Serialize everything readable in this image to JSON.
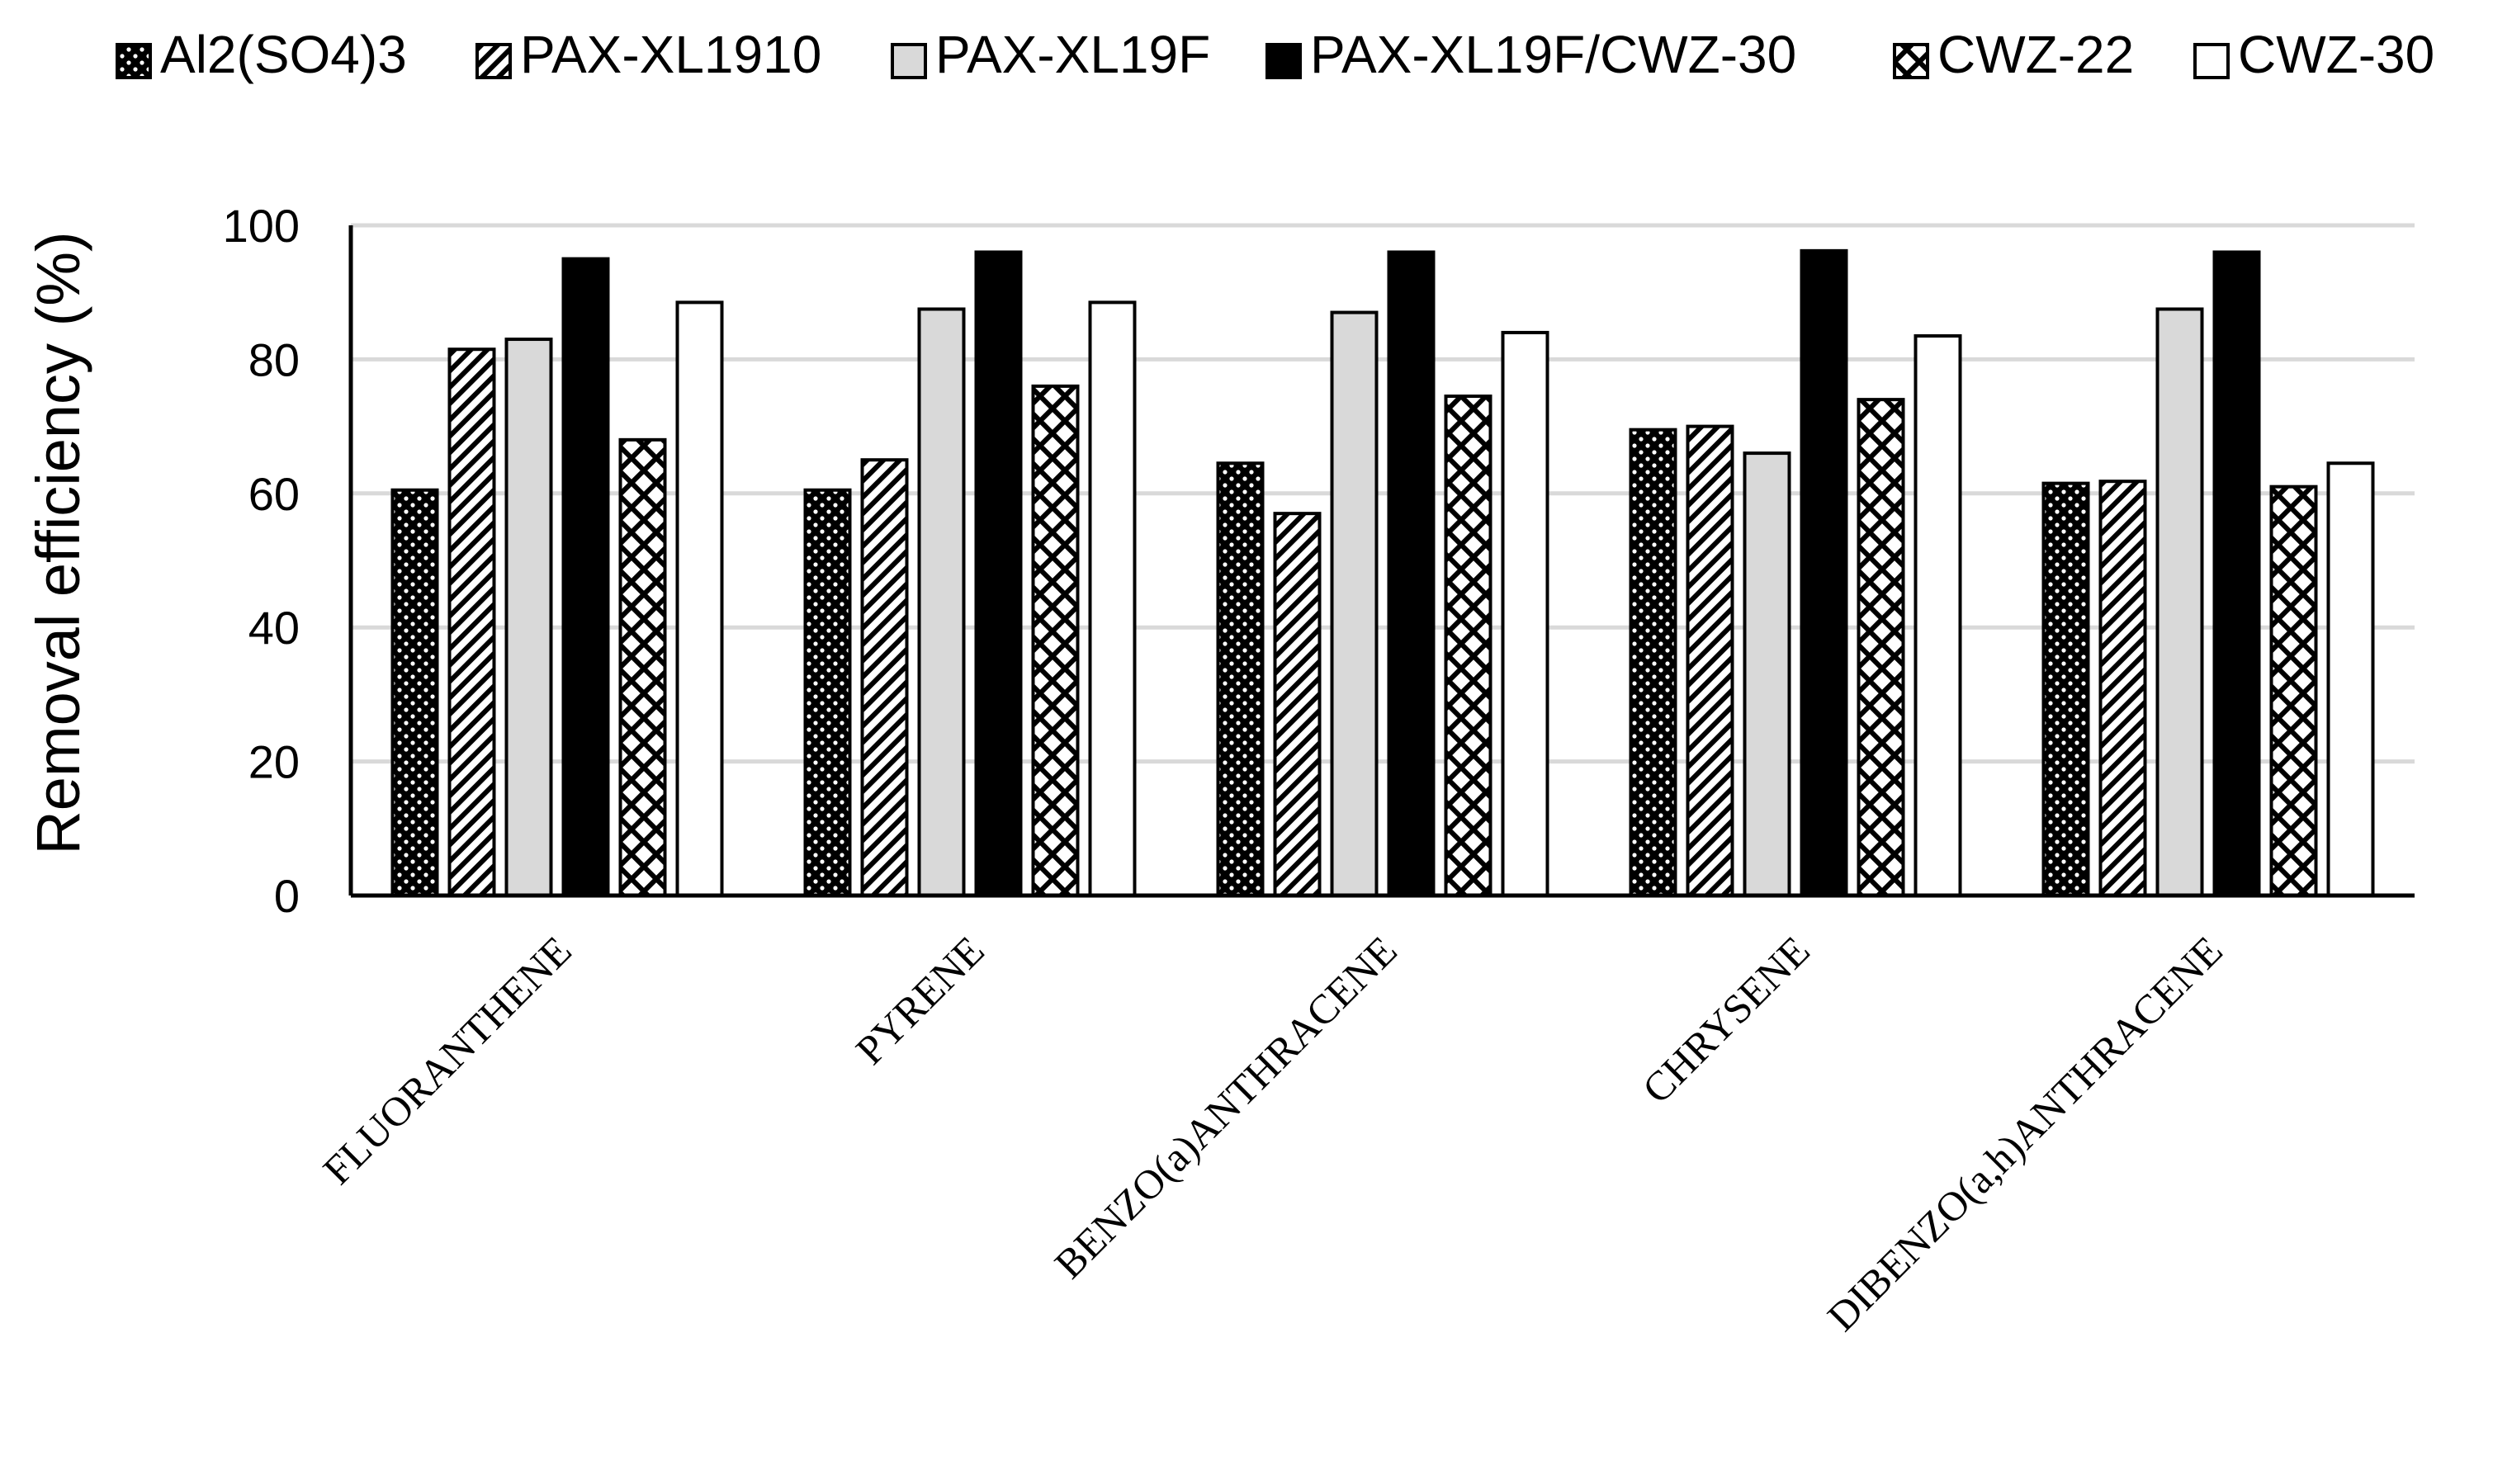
{
  "chart_data": {
    "type": "bar",
    "title": "",
    "xlabel": "",
    "ylabel": "Removal efficiency (%)",
    "ylim": [
      0,
      100
    ],
    "yticks": [
      0,
      20,
      40,
      60,
      80,
      100
    ],
    "grid": true,
    "legend_position": "top",
    "categories": [
      "FLUORANTHENE",
      "PYRENE",
      "BENZO(a)ANTHRACENE",
      "CHRYSENE",
      "DIBENZO(a,h)ANTHRACENE"
    ],
    "series": [
      {
        "name": "Al2(SO4)3",
        "pattern": "dots",
        "values": [
          60.5,
          60.5,
          64.5,
          69.5,
          61.5
        ]
      },
      {
        "name": "PAX-XL1910",
        "pattern": "diagonal-hatch",
        "values": [
          81.5,
          65.0,
          57.0,
          70.0,
          61.8
        ]
      },
      {
        "name": "PAX-XL19F",
        "pattern": "light-gray",
        "values": [
          83.0,
          87.5,
          87.0,
          66.0,
          87.5
        ]
      },
      {
        "name": "PAX-XL19F/CWZ-30",
        "pattern": "solid-black",
        "values": [
          95.0,
          96.0,
          96.0,
          96.2,
          96.0
        ]
      },
      {
        "name": "CWZ-22",
        "pattern": "diamond-lattice",
        "values": [
          68.0,
          76.0,
          74.5,
          74.0,
          61.0
        ]
      },
      {
        "name": "CWZ-30",
        "pattern": "white",
        "values": [
          88.5,
          88.5,
          84.0,
          83.5,
          64.5
        ]
      }
    ]
  },
  "colors": {
    "grid": "#d9d9d9",
    "axis": "#000000",
    "light_gray": "#d9d9d9",
    "black": "#000000",
    "white": "#ffffff"
  }
}
